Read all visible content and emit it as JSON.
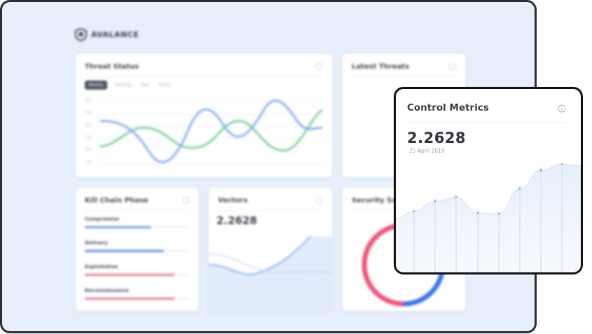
{
  "brand": {
    "name": "AVALANCE"
  },
  "threat_status": {
    "title": "Threat Status",
    "tabs": [
      {
        "label": "Weekly",
        "active": true
      },
      {
        "label": "Monthly",
        "active": false
      },
      {
        "label": "Year",
        "active": false
      },
      {
        "label": "Today",
        "active": false
      }
    ],
    "y_ticks": [
      "400",
      "350",
      "300",
      "250",
      "200",
      "150"
    ]
  },
  "latest_threats": {
    "title": "Latest Threats",
    "items": [
      "",
      "",
      "",
      "",
      ""
    ]
  },
  "kill_chain": {
    "title": "Kill Chain Phase",
    "rows": [
      {
        "label": "Compromise",
        "pct": 0.64,
        "color": "#6f9ef0"
      },
      {
        "label": "Delivery",
        "pct": 0.76,
        "color": "#5b8ff0"
      },
      {
        "label": "Exploitation",
        "pct": 0.86,
        "color": "#f07a8e"
      },
      {
        "label": "Reconnaissance",
        "pct": 0.86,
        "color": "#f07a8e"
      }
    ]
  },
  "vectors": {
    "title": "Vectors",
    "value": "2.2628"
  },
  "security_score": {
    "title": "Security Sco",
    "ring_colors": {
      "primary": "#f4567a",
      "secondary": "#3e74ee"
    }
  },
  "control_metrics": {
    "title": "Control Metrics",
    "value": "2.2628",
    "date": "25 April 2019",
    "points": [
      0.4,
      0.52,
      0.57,
      0.38,
      0.37,
      0.67,
      0.89,
      0.96
    ]
  },
  "colors": {
    "accent_blue": "#8ab0f5",
    "accent_green": "#7fd39a",
    "frame": "#2b2d31"
  }
}
